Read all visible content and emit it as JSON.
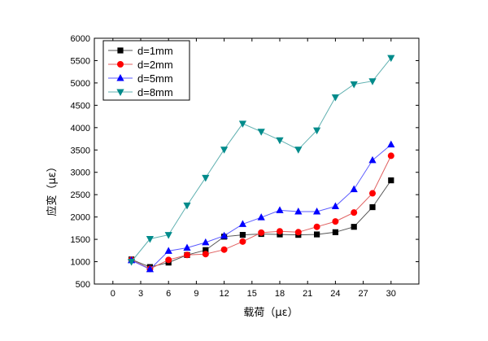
{
  "chart_data": {
    "type": "line",
    "title": "",
    "xlabel": "载荷（με）",
    "ylabel": "应变（με）",
    "x": [
      2,
      4,
      6,
      8,
      10,
      12,
      14,
      16,
      18,
      20,
      22,
      24,
      26,
      28,
      30
    ],
    "x_ticks": [
      0,
      3,
      6,
      9,
      12,
      15,
      18,
      21,
      24,
      27,
      30
    ],
    "x_tick_labels": [
      "0",
      "3",
      "6",
      "9",
      "12",
      "15",
      "18",
      "21",
      "24",
      "27",
      "30"
    ],
    "xlim": [
      -2,
      33
    ],
    "ylim": [
      500,
      6000
    ],
    "y_ticks": [
      500,
      1000,
      1500,
      2000,
      2500,
      3000,
      3500,
      4000,
      4500,
      5000,
      5500,
      6000
    ],
    "y_tick_labels": [
      "500",
      "1000",
      "1500",
      "2000",
      "2500",
      "3000",
      "3500",
      "4000",
      "4500",
      "5000",
      "5500",
      "6000"
    ],
    "grid": false,
    "legend_position": "top-left",
    "series": [
      {
        "name": "d=1mm",
        "marker": "square",
        "marker_color": "#000000",
        "line_color": "#555555",
        "values": [
          1050,
          880,
          980,
          1150,
          1260,
          1560,
          1600,
          1620,
          1610,
          1600,
          1610,
          1660,
          1780,
          2220,
          2820
        ]
      },
      {
        "name": "d=2mm",
        "marker": "circle",
        "marker_color": "#ff0000",
        "line_color": "#e06060",
        "values": [
          1040,
          840,
          1040,
          1150,
          1170,
          1270,
          1450,
          1650,
          1680,
          1660,
          1780,
          1900,
          2100,
          2530,
          3370
        ]
      },
      {
        "name": "d=5mm",
        "marker": "triangle-up",
        "marker_color": "#0000ff",
        "line_color": "#5a5aff",
        "values": [
          1030,
          830,
          1240,
          1310,
          1430,
          1580,
          1840,
          1990,
          2150,
          2120,
          2120,
          2240,
          2620,
          3270,
          3620
        ]
      },
      {
        "name": "d=8mm",
        "marker": "triangle-down",
        "marker_color": "#008b8b",
        "line_color": "#5fb0b0",
        "values": [
          1000,
          1510,
          1600,
          2260,
          2880,
          3510,
          4090,
          3910,
          3720,
          3510,
          3940,
          4680,
          4970,
          5040,
          5560
        ]
      }
    ]
  }
}
